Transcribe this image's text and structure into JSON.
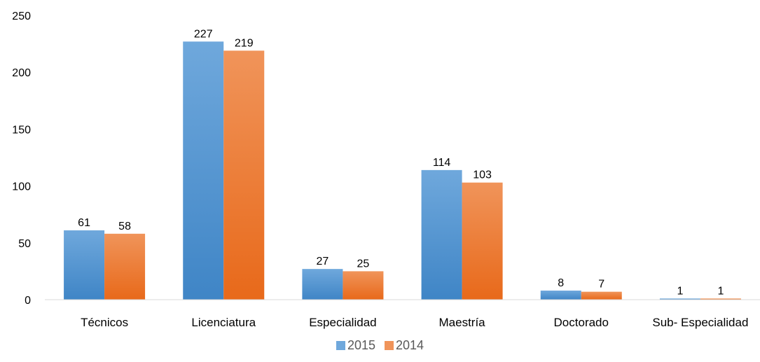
{
  "chart_data": {
    "type": "bar",
    "title": "",
    "xlabel": "",
    "ylabel": "",
    "ylim": [
      0,
      250
    ],
    "yticks": [
      0,
      50,
      100,
      150,
      200,
      250
    ],
    "grid": false,
    "legend_position": "bottom",
    "categories": [
      "Técnicos",
      "Licenciatura",
      "Especialidad",
      "Maestría",
      "Doctorado",
      "Sub- Especialidad"
    ],
    "series": [
      {
        "name": "2015",
        "values": [
          61,
          227,
          27,
          114,
          8,
          1
        ],
        "color_top": "#6fa8dc",
        "color_bottom": "#3f85c6"
      },
      {
        "name": "2014",
        "values": [
          58,
          219,
          25,
          103,
          7,
          1
        ],
        "color_top": "#f0945a",
        "color_bottom": "#e8691a"
      }
    ]
  }
}
